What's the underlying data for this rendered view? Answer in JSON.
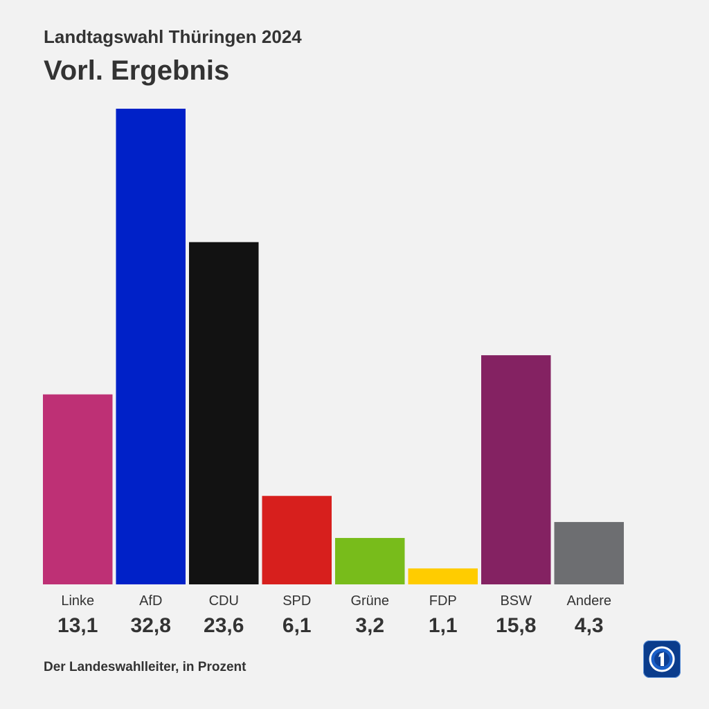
{
  "header": {
    "subtitle": "Landtagswahl Thüringen 2024",
    "title": "Vorl. Ergebnis"
  },
  "footer": {
    "source": "Der Landeswahlleiter, in Prozent"
  },
  "logo": {
    "icon": "tagesschau-logo-icon"
  },
  "chart_data": {
    "type": "bar",
    "categories": [
      "Linke",
      "AfD",
      "CDU",
      "SPD",
      "Grüne",
      "FDP",
      "BSW",
      "Andere"
    ],
    "values": [
      13.1,
      32.8,
      23.6,
      6.1,
      3.2,
      1.1,
      15.8,
      4.3
    ],
    "value_labels": [
      "13,1",
      "32,8",
      "23,6",
      "6,1",
      "3,2",
      "1,1",
      "15,8",
      "4,3"
    ],
    "colors": [
      "#be3075",
      "#0021c8",
      "#121212",
      "#d71f1d",
      "#78bc1b",
      "#ffcc00",
      "#842262",
      "#6d6e71"
    ],
    "ylim": [
      0,
      32.8
    ],
    "grid": false,
    "legend": "none"
  }
}
